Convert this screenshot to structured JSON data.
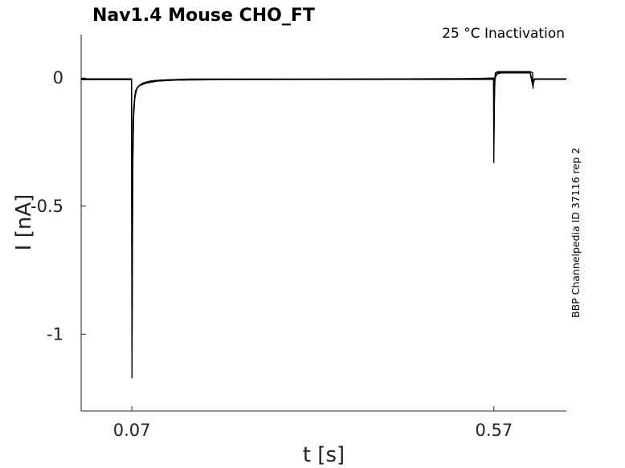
{
  "chart_data": {
    "type": "line",
    "title": "Nav1.4  Mouse  CHO_FT",
    "annotation": "25 °C  Inactivation",
    "side_label": "BBP Channelpedia ID 37116 rep 2",
    "xlabel": "t [s]",
    "ylabel": "I [nA]",
    "xlim": [
      0.0,
      0.67
    ],
    "ylim": [
      -1.3,
      0.17
    ],
    "x_ticks": [
      0.07,
      0.57
    ],
    "x_tick_labels": [
      "0.07",
      "0.57"
    ],
    "y_ticks": [
      0,
      -0.5,
      -1
    ],
    "y_tick_labels": [
      "0",
      "-0.5",
      "-1"
    ],
    "grid": false,
    "legend": "none",
    "series": [
      {
        "x": [
          0.0,
          0.0695,
          0.0699,
          0.0702,
          0.0706,
          0.071,
          0.0715,
          0.0725,
          0.074,
          0.077,
          0.082,
          0.09,
          0.1,
          0.12,
          0.15,
          0.2,
          0.3,
          0.4,
          0.5,
          0.5695,
          0.5698,
          0.5702,
          0.5706,
          0.5712,
          0.572,
          0.575,
          0.58,
          0.6,
          0.62,
          0.6235,
          0.624,
          0.6245,
          0.626,
          0.63,
          0.67
        ],
        "y": [
          -0.005,
          -0.005,
          -0.3,
          -1.17,
          -0.9,
          -0.55,
          -0.3,
          -0.15,
          -0.08,
          -0.04,
          -0.025,
          -0.015,
          -0.01,
          -0.007,
          -0.005,
          -0.005,
          -0.005,
          -0.005,
          -0.005,
          0.0,
          -0.33,
          -0.2,
          -0.08,
          0.0,
          0.02,
          0.025,
          0.025,
          0.025,
          0.025,
          0.02,
          -0.04,
          -0.02,
          -0.005,
          -0.005,
          -0.005
        ]
      },
      {
        "x": [
          0.0,
          0.0696,
          0.0701,
          0.0706,
          0.0712,
          0.072,
          0.074,
          0.078,
          0.085,
          0.095,
          0.11,
          0.15,
          0.3,
          0.5696,
          0.57,
          0.5705,
          0.571,
          0.573,
          0.58,
          0.62,
          0.6236,
          0.6242,
          0.626,
          0.67
        ],
        "y": [
          -0.003,
          -0.003,
          -1.05,
          -0.7,
          -0.35,
          -0.16,
          -0.07,
          -0.035,
          -0.02,
          -0.012,
          -0.008,
          -0.004,
          -0.004,
          -0.002,
          -0.25,
          -0.1,
          -0.01,
          0.015,
          0.02,
          0.02,
          -0.03,
          -0.012,
          -0.003,
          -0.003
        ]
      },
      {
        "x": [
          0.0,
          0.0697,
          0.0702,
          0.0707,
          0.0714,
          0.0725,
          0.075,
          0.08,
          0.09,
          0.105,
          0.13,
          0.2,
          0.5697,
          0.5701,
          0.5707,
          0.5715,
          0.575,
          0.59,
          0.62,
          0.6237,
          0.6243,
          0.627,
          0.67
        ],
        "y": [
          -0.006,
          -0.006,
          -0.9,
          -0.6,
          -0.28,
          -0.12,
          -0.05,
          -0.03,
          -0.02,
          -0.012,
          -0.008,
          -0.006,
          -0.005,
          -0.2,
          -0.07,
          0.0,
          0.02,
          0.022,
          0.022,
          -0.02,
          -0.01,
          -0.005,
          -0.005
        ]
      }
    ]
  }
}
